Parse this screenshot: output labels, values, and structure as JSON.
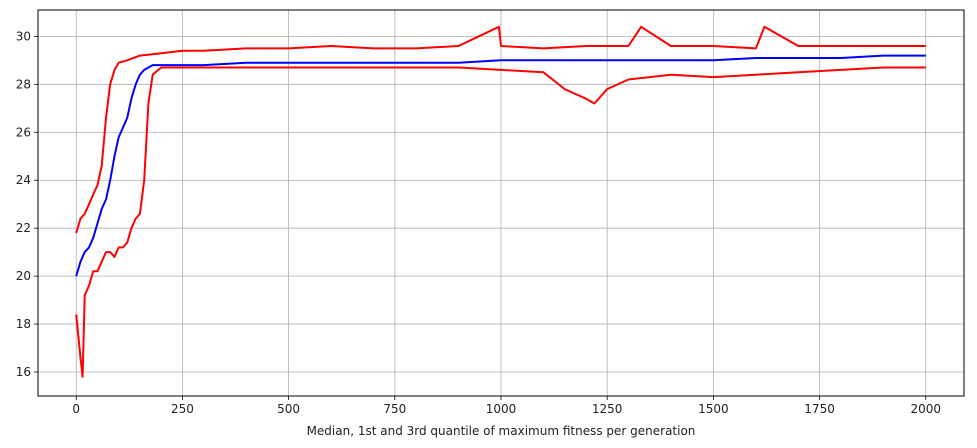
{
  "chart_data": {
    "type": "line",
    "title": "",
    "xlabel": "Median, 1st and 3rd quantile of maximum fitness per generation",
    "ylabel": "",
    "xlim": [
      -90,
      2090
    ],
    "ylim": [
      15.0,
      31.1
    ],
    "xticks": [
      0,
      250,
      500,
      750,
      1000,
      1250,
      1500,
      1750,
      2000
    ],
    "yticks": [
      16,
      18,
      20,
      22,
      24,
      26,
      28,
      30
    ],
    "xtick_labels": [
      "0",
      "250",
      "500",
      "750",
      "1000",
      "1250",
      "1500",
      "1750",
      "2000"
    ],
    "ytick_labels": [
      "16",
      "18",
      "20",
      "22",
      "24",
      "26",
      "28",
      "30"
    ],
    "grid": true,
    "legend": "none",
    "series": [
      {
        "color": "#0000ff",
        "role": "median",
        "x": [
          0,
          10,
          20,
          30,
          40,
          50,
          60,
          70,
          80,
          90,
          100,
          110,
          120,
          130,
          140,
          150,
          160,
          170,
          180,
          200,
          250,
          300,
          400,
          500,
          600,
          700,
          800,
          900,
          1000,
          1100,
          1200,
          1300,
          1400,
          1500,
          1600,
          1700,
          1800,
          1900,
          2000
        ],
        "values": [
          20.0,
          20.6,
          21.0,
          21.2,
          21.6,
          22.2,
          22.8,
          23.2,
          24.0,
          25.0,
          25.8,
          26.2,
          26.6,
          27.4,
          28.0,
          28.4,
          28.6,
          28.7,
          28.8,
          28.8,
          28.8,
          28.8,
          28.9,
          28.9,
          28.9,
          28.9,
          28.9,
          28.9,
          29.0,
          29.0,
          29.0,
          29.0,
          29.0,
          29.0,
          29.1,
          29.1,
          29.1,
          29.2,
          29.2
        ]
      },
      {
        "color": "#ff0000",
        "role": "1st quantile",
        "x": [
          0,
          10,
          15,
          20,
          30,
          40,
          50,
          60,
          70,
          80,
          90,
          100,
          110,
          120,
          130,
          140,
          150,
          160,
          170,
          180,
          200,
          250,
          300,
          400,
          500,
          600,
          700,
          800,
          900,
          1000,
          1100,
          1150,
          1200,
          1220,
          1250,
          1300,
          1400,
          1500,
          1600,
          1700,
          1800,
          1900,
          2000
        ],
        "values": [
          18.4,
          16.6,
          15.8,
          19.2,
          19.6,
          20.2,
          20.2,
          20.6,
          21.0,
          21.0,
          20.8,
          21.2,
          21.2,
          21.4,
          22.0,
          22.4,
          22.6,
          24.0,
          27.2,
          28.4,
          28.7,
          28.7,
          28.7,
          28.7,
          28.7,
          28.7,
          28.7,
          28.7,
          28.7,
          28.6,
          28.5,
          27.8,
          27.4,
          27.2,
          27.8,
          28.2,
          28.4,
          28.3,
          28.4,
          28.5,
          28.6,
          28.7,
          28.7
        ]
      },
      {
        "color": "#ff0000",
        "role": "3rd quantile",
        "x": [
          0,
          10,
          20,
          30,
          40,
          50,
          60,
          70,
          80,
          90,
          100,
          120,
          150,
          200,
          250,
          300,
          400,
          500,
          600,
          700,
          800,
          900,
          995,
          1000,
          1100,
          1200,
          1300,
          1330,
          1400,
          1500,
          1600,
          1620,
          1700,
          1800,
          1900,
          2000
        ],
        "values": [
          21.8,
          22.4,
          22.6,
          23.0,
          23.4,
          23.8,
          24.6,
          26.6,
          28.0,
          28.6,
          28.9,
          29.0,
          29.2,
          29.3,
          29.4,
          29.4,
          29.5,
          29.5,
          29.6,
          29.5,
          29.5,
          29.6,
          30.4,
          29.6,
          29.5,
          29.6,
          29.6,
          30.4,
          29.6,
          29.6,
          29.5,
          30.4,
          29.6,
          29.6,
          29.6,
          29.6
        ]
      }
    ]
  }
}
